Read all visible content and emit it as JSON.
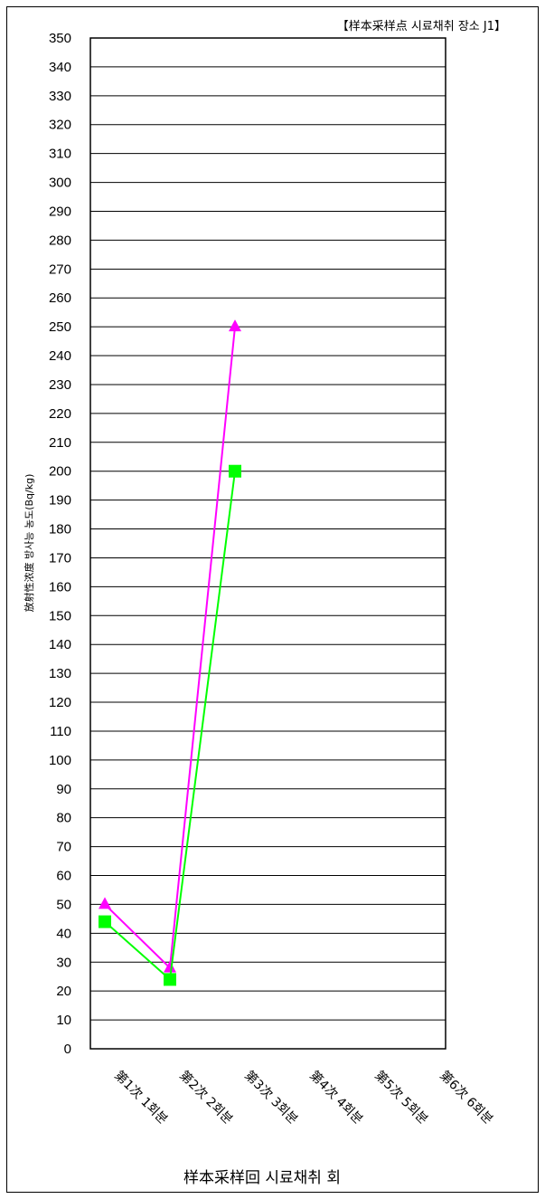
{
  "chart_data": {
    "type": "line",
    "title": "【样本采样点  시료채취 장소   J1】",
    "xlabel": "样本采样回  시료채취 회",
    "ylabel": "放射性浓度  방사능 농도(Bq/kg)",
    "categories": [
      "第1次  1회분",
      "第2次  2회분",
      "第3次  3회분",
      "第4次  4회분",
      "第5次  5회분",
      "第6次  6회분"
    ],
    "ylim": [
      0,
      350
    ],
    "ytick_step": 10,
    "grid": true,
    "series": [
      {
        "values": [
          50,
          28,
          250,
          null,
          null,
          null
        ],
        "color": "#ff00ff",
        "marker": "triangle"
      },
      {
        "values": [
          44,
          24,
          200,
          null,
          null,
          null
        ],
        "color": "#00ff00",
        "marker": "square"
      }
    ]
  }
}
